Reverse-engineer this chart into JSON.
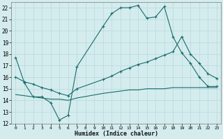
{
  "title": "",
  "xlabel": "Humidex (Indice chaleur)",
  "xlim": [
    -0.5,
    23.5
  ],
  "ylim": [
    12,
    22.5
  ],
  "yticks": [
    12,
    13,
    14,
    15,
    16,
    17,
    18,
    19,
    20,
    21,
    22
  ],
  "xticks": [
    0,
    1,
    2,
    3,
    4,
    5,
    6,
    7,
    8,
    9,
    10,
    11,
    12,
    13,
    14,
    15,
    16,
    17,
    18,
    19,
    20,
    21,
    22,
    23
  ],
  "bg_color": "#d4ecee",
  "grid_color": "#b8d8da",
  "line_color": "#1a6b6b",
  "line1_x": [
    0,
    1,
    2,
    3,
    4,
    5,
    6,
    7,
    10,
    11,
    12,
    13,
    14,
    15,
    16,
    17,
    18,
    19,
    20,
    21,
    22,
    23
  ],
  "line1_y": [
    17.7,
    15.5,
    14.3,
    14.3,
    13.8,
    12.3,
    12.7,
    16.9,
    20.4,
    21.5,
    22.0,
    22.0,
    22.2,
    21.1,
    21.2,
    22.1,
    19.5,
    18.1,
    17.2,
    16.0,
    15.2,
    15.2
  ],
  "line2_x": [
    0,
    1,
    2,
    3,
    4,
    5,
    6,
    7,
    10,
    11,
    12,
    13,
    14,
    15,
    16,
    17,
    18,
    19,
    20,
    21,
    22,
    23
  ],
  "line2_y": [
    16.0,
    15.6,
    15.4,
    15.1,
    14.9,
    14.6,
    14.4,
    15.0,
    15.8,
    16.1,
    16.5,
    16.8,
    17.1,
    17.3,
    17.6,
    17.9,
    18.2,
    19.5,
    18.0,
    17.2,
    16.3,
    15.9
  ],
  "line3_x": [
    0,
    1,
    2,
    3,
    4,
    5,
    6,
    7,
    10,
    11,
    12,
    13,
    14,
    15,
    16,
    17,
    18,
    19,
    20,
    21,
    22,
    23
  ],
  "line3_y": [
    14.5,
    14.4,
    14.3,
    14.2,
    14.1,
    14.1,
    14.0,
    14.2,
    14.6,
    14.7,
    14.8,
    14.9,
    14.9,
    15.0,
    15.0,
    15.0,
    15.1,
    15.1,
    15.1,
    15.1,
    15.1,
    15.1
  ]
}
